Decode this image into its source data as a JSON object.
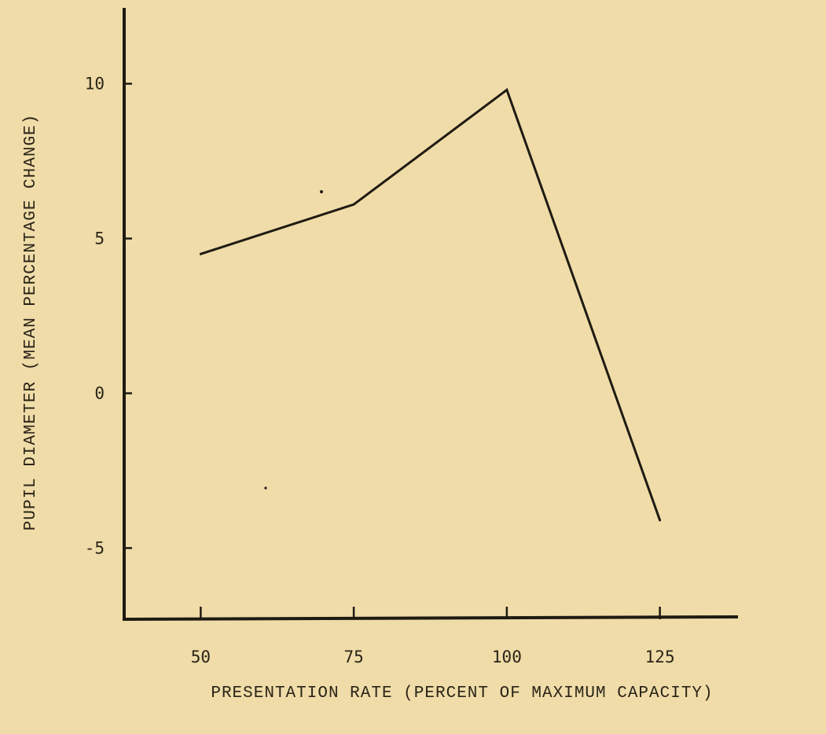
{
  "chart_data": {
    "type": "line",
    "x": [
      50,
      75,
      100,
      125
    ],
    "series": [
      {
        "values": [
          4.5,
          6.1,
          9.8,
          -4.1
        ]
      }
    ],
    "x_ticks": [
      50,
      75,
      100,
      125
    ],
    "y_ticks": [
      10,
      5,
      0,
      -5
    ],
    "xlabel": "PRESENTATION RATE (PERCENT OF MAXIMUM CAPACITY)",
    "ylabel": "PUPIL DIAMETER (MEAN PERCENTAGE CHANGE)",
    "xlim": [
      37.5,
      137.5
    ],
    "ylim": [
      -7.3,
      12.4
    ],
    "grid": false,
    "colors": {
      "background": "#efdca8",
      "ink": "#1f1a12"
    }
  }
}
